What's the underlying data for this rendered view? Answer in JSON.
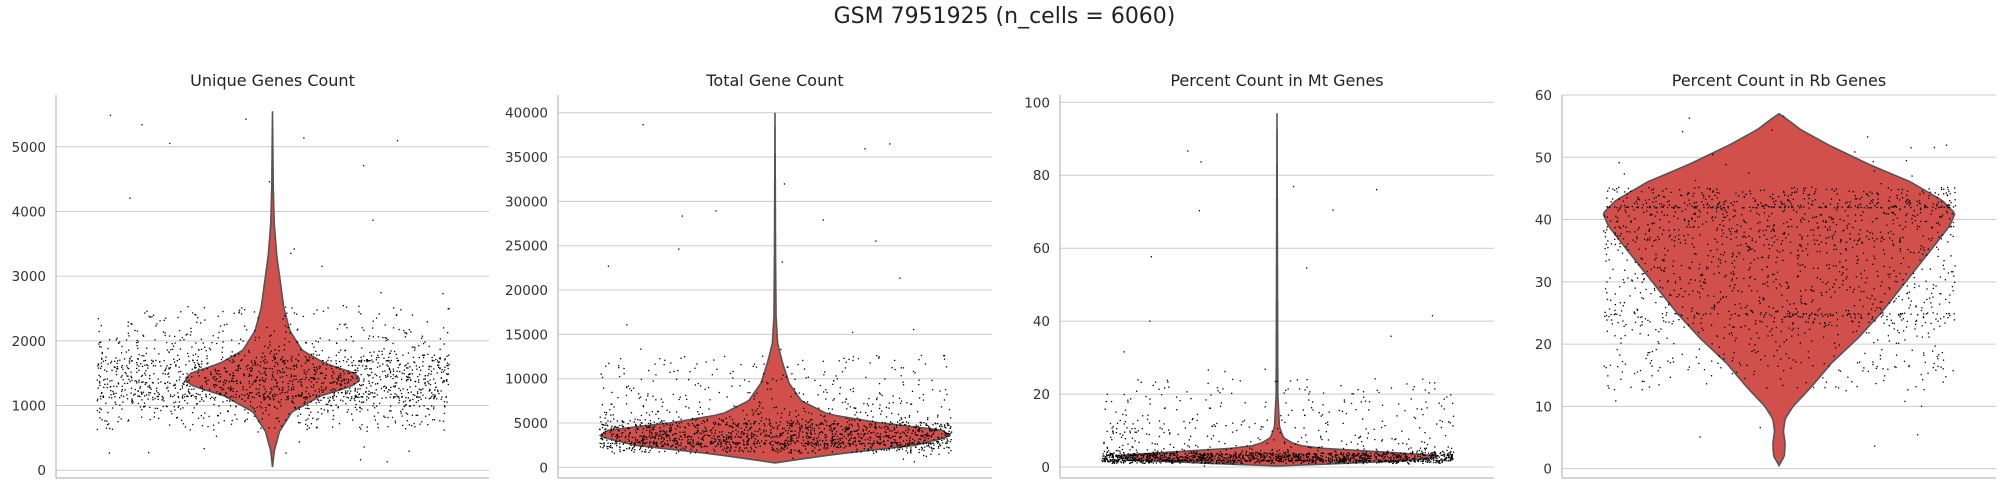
{
  "figure": {
    "suptitle": "GSM 7951925 (n_cells = 6060)",
    "violin_color": "#d1504b",
    "outline_color": "#555555",
    "dot_color": "#000000"
  },
  "chart_data": [
    {
      "type": "violin",
      "title": "Unique Genes Count",
      "xlabel": "",
      "ylabel": "",
      "ylim": [
        -120,
        5800
      ],
      "yticks": [
        0,
        1000,
        2000,
        3000,
        4000,
        5000
      ],
      "grid": true,
      "distribution": {
        "min": 50,
        "q1": 1150,
        "median": 1400,
        "q3": 1700,
        "max": 5550
      },
      "violin_profile": [
        {
          "y": 50,
          "w": 0.0
        },
        {
          "y": 300,
          "w": 0.02
        },
        {
          "y": 600,
          "w": 0.08
        },
        {
          "y": 900,
          "w": 0.22
        },
        {
          "y": 1150,
          "w": 0.55
        },
        {
          "y": 1300,
          "w": 0.9
        },
        {
          "y": 1400,
          "w": 1.0
        },
        {
          "y": 1500,
          "w": 0.93
        },
        {
          "y": 1650,
          "w": 0.6
        },
        {
          "y": 1850,
          "w": 0.34
        },
        {
          "y": 2150,
          "w": 0.2
        },
        {
          "y": 2500,
          "w": 0.13
        },
        {
          "y": 2900,
          "w": 0.09
        },
        {
          "y": 3300,
          "w": 0.05
        },
        {
          "y": 3800,
          "w": 0.02
        },
        {
          "y": 4400,
          "w": 0.008
        },
        {
          "y": 5550,
          "w": 0.0
        }
      ]
    },
    {
      "type": "violin",
      "title": "Total Gene Count",
      "xlabel": "",
      "ylabel": "",
      "ylim": [
        -1200,
        42000
      ],
      "yticks": [
        0,
        5000,
        10000,
        15000,
        20000,
        25000,
        30000,
        35000,
        40000
      ],
      "grid": true,
      "distribution": {
        "min": 500,
        "q1": 2800,
        "median": 3800,
        "q3": 5000,
        "max": 40000
      },
      "violin_profile": [
        {
          "y": 500,
          "w": 0.0
        },
        {
          "y": 800,
          "w": 0.1
        },
        {
          "y": 1500,
          "w": 0.35
        },
        {
          "y": 2500,
          "w": 0.8
        },
        {
          "y": 3500,
          "w": 1.0
        },
        {
          "y": 4200,
          "w": 0.95
        },
        {
          "y": 5000,
          "w": 0.6
        },
        {
          "y": 6000,
          "w": 0.3
        },
        {
          "y": 7500,
          "w": 0.15
        },
        {
          "y": 9500,
          "w": 0.08
        },
        {
          "y": 12000,
          "w": 0.04
        },
        {
          "y": 14000,
          "w": 0.015
        },
        {
          "y": 17000,
          "w": 0.006
        },
        {
          "y": 24000,
          "w": 0.003
        },
        {
          "y": 40000,
          "w": 0.0
        }
      ]
    },
    {
      "type": "violin",
      "title": "Percent Count in Mt Genes",
      "xlabel": "",
      "ylabel": "",
      "ylim": [
        -3,
        102
      ],
      "yticks": [
        0,
        20,
        40,
        60,
        80,
        100
      ],
      "grid": true,
      "distribution": {
        "min": 0.3,
        "q1": 2,
        "median": 3,
        "q3": 4,
        "max": 97
      },
      "violin_profile": [
        {
          "y": 0.3,
          "w": 0.0
        },
        {
          "y": 1,
          "w": 0.4
        },
        {
          "y": 2,
          "w": 0.9
        },
        {
          "y": 3,
          "w": 1.0
        },
        {
          "y": 4,
          "w": 0.7
        },
        {
          "y": 5,
          "w": 0.3
        },
        {
          "y": 6,
          "w": 0.12
        },
        {
          "y": 8,
          "w": 0.04
        },
        {
          "y": 11,
          "w": 0.015
        },
        {
          "y": 20,
          "w": 0.005
        },
        {
          "y": 97,
          "w": 0.0
        }
      ]
    },
    {
      "type": "violin",
      "title": "Percent Count in Rb Genes",
      "xlabel": "",
      "ylabel": "",
      "ylim": [
        -1.5,
        60
      ],
      "yticks": [
        0,
        10,
        20,
        30,
        40,
        50,
        60
      ],
      "grid": true,
      "distribution": {
        "min": 0.5,
        "q1": 25,
        "median": 35,
        "q3": 42,
        "max": 57
      },
      "violin_profile": [
        {
          "y": 0.5,
          "w": 0.0
        },
        {
          "y": 2,
          "w": 0.03
        },
        {
          "y": 4,
          "w": 0.035
        },
        {
          "y": 6,
          "w": 0.025
        },
        {
          "y": 8,
          "w": 0.035
        },
        {
          "y": 10,
          "w": 0.08
        },
        {
          "y": 13,
          "w": 0.18
        },
        {
          "y": 17,
          "w": 0.3
        },
        {
          "y": 21,
          "w": 0.45
        },
        {
          "y": 25,
          "w": 0.58
        },
        {
          "y": 30,
          "w": 0.72
        },
        {
          "y": 35,
          "w": 0.86
        },
        {
          "y": 39,
          "w": 0.97
        },
        {
          "y": 41,
          "w": 1.0
        },
        {
          "y": 43,
          "w": 0.93
        },
        {
          "y": 46,
          "w": 0.75
        },
        {
          "y": 49,
          "w": 0.5
        },
        {
          "y": 52,
          "w": 0.28
        },
        {
          "y": 54.5,
          "w": 0.12
        },
        {
          "y": 56,
          "w": 0.05
        },
        {
          "y": 57,
          "w": 0.0
        }
      ]
    }
  ]
}
